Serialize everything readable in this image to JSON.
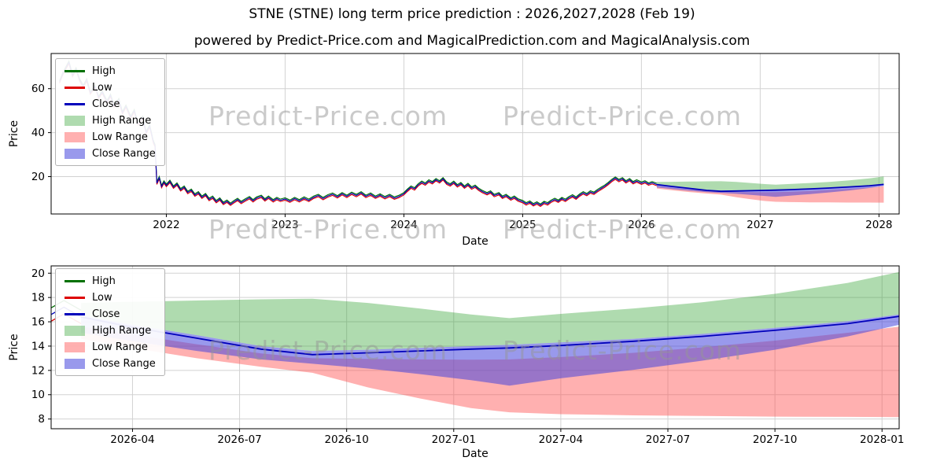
{
  "title": "STNE (STNE) long term price prediction : 2026,2027,2028 (Feb 19)",
  "subtitle": "powered by Predict-Price.com and MagicalPrediction.com and MagicalAnalysis.com",
  "watermark": {
    "text": "Predict-Price.com",
    "color": "rgba(150,150,150,0.5)"
  },
  "axis_labels": {
    "x": "Date",
    "y": "Price"
  },
  "colors": {
    "high": "#007000",
    "low": "#dd0000",
    "close": "#0000bb",
    "high_range": "rgba(44,160,44,0.38)",
    "low_range": "rgba(255,80,80,0.45)",
    "close_range": "rgba(70,70,220,0.55)",
    "grid": "#d2d2d2",
    "axis": "#000000"
  },
  "legend": {
    "items": [
      {
        "label": "High",
        "type": "line",
        "color": "#007000"
      },
      {
        "label": "Low",
        "type": "line",
        "color": "#dd0000"
      },
      {
        "label": "Close",
        "type": "line",
        "color": "#0000bb"
      },
      {
        "label": "High Range",
        "type": "band",
        "color": "rgba(44,160,44,0.38)"
      },
      {
        "label": "Low Range",
        "type": "band",
        "color": "rgba(255,80,80,0.45)"
      },
      {
        "label": "Close Range",
        "type": "band",
        "color": "rgba(70,70,220,0.55)"
      }
    ]
  },
  "chart_data": [
    {
      "type": "line",
      "name": "history-and-forecast",
      "xlabel": "Date",
      "ylabel": "Price",
      "xlim": [
        2021.03,
        2028.17
      ],
      "ylim": [
        3,
        76
      ],
      "grid": true,
      "legend_position": "upper-left",
      "xticks": [
        {
          "v": 2022,
          "label": "2022"
        },
        {
          "v": 2023,
          "label": "2023"
        },
        {
          "v": 2024,
          "label": "2024"
        },
        {
          "v": 2025,
          "label": "2025"
        },
        {
          "v": 2026,
          "label": "2026"
        },
        {
          "v": 2027,
          "label": "2027"
        },
        {
          "v": 2028,
          "label": "2028"
        }
      ],
      "yticks": [
        {
          "v": 20,
          "label": "20"
        },
        {
          "v": 40,
          "label": "40"
        },
        {
          "v": 60,
          "label": "60"
        }
      ],
      "series": {
        "history": {
          "high_offset": 0.55,
          "low_offset": -0.55,
          "close_points": [
            [
              2021.1,
              63
            ],
            [
              2021.13,
              67
            ],
            [
              2021.16,
              70
            ],
            [
              2021.18,
              72
            ],
            [
              2021.21,
              66
            ],
            [
              2021.24,
              69
            ],
            [
              2021.27,
              64
            ],
            [
              2021.3,
              61
            ],
            [
              2021.33,
              64
            ],
            [
              2021.36,
              58
            ],
            [
              2021.4,
              61
            ],
            [
              2021.43,
              56
            ],
            [
              2021.46,
              58.5
            ],
            [
              2021.5,
              54
            ],
            [
              2021.53,
              57
            ],
            [
              2021.56,
              52
            ],
            [
              2021.6,
              55
            ],
            [
              2021.63,
              49
            ],
            [
              2021.66,
              52
            ],
            [
              2021.7,
              47
            ],
            [
              2021.73,
              50
            ],
            [
              2021.76,
              44
            ],
            [
              2021.8,
              47
            ],
            [
              2021.83,
              40
            ],
            [
              2021.86,
              43
            ],
            [
              2021.89,
              36
            ],
            [
              2021.905,
              34
            ],
            [
              2021.92,
              17
            ],
            [
              2021.94,
              19.5
            ],
            [
              2021.96,
              15.5
            ],
            [
              2021.98,
              17.5
            ],
            [
              2022.0,
              16.0
            ],
            [
              2022.03,
              17.8
            ],
            [
              2022.06,
              15.2
            ],
            [
              2022.09,
              16.6
            ],
            [
              2022.12,
              14.0
            ],
            [
              2022.15,
              15.2
            ],
            [
              2022.18,
              12.8
            ],
            [
              2022.21,
              13.8
            ],
            [
              2022.24,
              11.6
            ],
            [
              2022.27,
              12.6
            ],
            [
              2022.3,
              10.6
            ],
            [
              2022.33,
              11.8
            ],
            [
              2022.36,
              9.6
            ],
            [
              2022.39,
              10.6
            ],
            [
              2022.42,
              8.6
            ],
            [
              2022.45,
              9.8
            ],
            [
              2022.48,
              7.8
            ],
            [
              2022.51,
              8.8
            ],
            [
              2022.54,
              7.4
            ],
            [
              2022.57,
              8.6
            ],
            [
              2022.6,
              9.6
            ],
            [
              2022.63,
              8.2
            ],
            [
              2022.66,
              9.2
            ],
            [
              2022.7,
              10.4
            ],
            [
              2022.73,
              9.0
            ],
            [
              2022.76,
              10.2
            ],
            [
              2022.8,
              11.0
            ],
            [
              2022.83,
              9.4
            ],
            [
              2022.86,
              10.6
            ],
            [
              2022.9,
              9.0
            ],
            [
              2022.93,
              10.0
            ],
            [
              2022.96,
              9.2
            ],
            [
              2023.0,
              9.8
            ],
            [
              2023.04,
              8.8
            ],
            [
              2023.08,
              10.0
            ],
            [
              2023.12,
              9.0
            ],
            [
              2023.16,
              10.2
            ],
            [
              2023.2,
              9.2
            ],
            [
              2023.24,
              10.6
            ],
            [
              2023.28,
              11.4
            ],
            [
              2023.32,
              10.0
            ],
            [
              2023.36,
              11.2
            ],
            [
              2023.4,
              12.0
            ],
            [
              2023.44,
              10.8
            ],
            [
              2023.48,
              12.2
            ],
            [
              2023.52,
              11.0
            ],
            [
              2023.56,
              12.4
            ],
            [
              2023.6,
              11.4
            ],
            [
              2023.64,
              12.6
            ],
            [
              2023.68,
              11.0
            ],
            [
              2023.72,
              12.0
            ],
            [
              2023.76,
              10.6
            ],
            [
              2023.8,
              11.6
            ],
            [
              2023.84,
              10.4
            ],
            [
              2023.88,
              11.4
            ],
            [
              2023.92,
              10.2
            ],
            [
              2023.96,
              11.0
            ],
            [
              2024.0,
              12.2
            ],
            [
              2024.03,
              13.8
            ],
            [
              2024.06,
              15.2
            ],
            [
              2024.09,
              14.4
            ],
            [
              2024.12,
              16.2
            ],
            [
              2024.15,
              17.4
            ],
            [
              2024.18,
              16.6
            ],
            [
              2024.21,
              18.0
            ],
            [
              2024.24,
              17.2
            ],
            [
              2024.27,
              18.6
            ],
            [
              2024.3,
              17.6
            ],
            [
              2024.33,
              19.0
            ],
            [
              2024.36,
              17.0
            ],
            [
              2024.39,
              16.2
            ],
            [
              2024.42,
              17.4
            ],
            [
              2024.45,
              15.8
            ],
            [
              2024.48,
              16.8
            ],
            [
              2024.51,
              15.2
            ],
            [
              2024.54,
              16.4
            ],
            [
              2024.57,
              14.8
            ],
            [
              2024.6,
              15.6
            ],
            [
              2024.63,
              14.2
            ],
            [
              2024.66,
              13.2
            ],
            [
              2024.7,
              12.2
            ],
            [
              2024.73,
              13.0
            ],
            [
              2024.76,
              11.4
            ],
            [
              2024.8,
              12.2
            ],
            [
              2024.83,
              10.6
            ],
            [
              2024.86,
              11.4
            ],
            [
              2024.9,
              9.8
            ],
            [
              2024.93,
              10.6
            ],
            [
              2024.96,
              9.4
            ],
            [
              2025.0,
              8.6
            ],
            [
              2025.03,
              7.6
            ],
            [
              2025.06,
              8.4
            ],
            [
              2025.09,
              7.2
            ],
            [
              2025.12,
              8.0
            ],
            [
              2025.15,
              7.0
            ],
            [
              2025.18,
              8.2
            ],
            [
              2025.21,
              7.6
            ],
            [
              2025.24,
              8.8
            ],
            [
              2025.27,
              9.6
            ],
            [
              2025.3,
              8.8
            ],
            [
              2025.33,
              10.0
            ],
            [
              2025.36,
              9.2
            ],
            [
              2025.39,
              10.4
            ],
            [
              2025.42,
              11.2
            ],
            [
              2025.45,
              10.2
            ],
            [
              2025.48,
              11.6
            ],
            [
              2025.51,
              12.6
            ],
            [
              2025.54,
              11.8
            ],
            [
              2025.57,
              13.0
            ],
            [
              2025.6,
              12.4
            ],
            [
              2025.63,
              13.6
            ],
            [
              2025.66,
              14.6
            ],
            [
              2025.69,
              15.6
            ],
            [
              2025.72,
              16.8
            ],
            [
              2025.75,
              18.2
            ],
            [
              2025.78,
              19.3
            ],
            [
              2025.81,
              18.2
            ],
            [
              2025.84,
              19.0
            ],
            [
              2025.87,
              17.6
            ],
            [
              2025.9,
              18.6
            ],
            [
              2025.93,
              17.2
            ],
            [
              2025.96,
              18.0
            ],
            [
              2026.0,
              17.0
            ],
            [
              2026.03,
              17.6
            ],
            [
              2026.06,
              16.6
            ],
            [
              2026.09,
              17.2
            ],
            [
              2026.13,
              16.4
            ]
          ]
        },
        "forecast": {
          "t": [
            2026.13,
            2026.25,
            2026.4,
            2026.55,
            2026.67,
            2026.8,
            2026.92,
            2027.04,
            2027.13,
            2027.25,
            2027.42,
            2027.58,
            2027.75,
            2027.92,
            2028.04
          ],
          "close": [
            16.4,
            15.55,
            14.65,
            13.75,
            13.3,
            13.45,
            13.6,
            13.75,
            13.85,
            14.05,
            14.4,
            14.8,
            15.3,
            15.85,
            16.45
          ],
          "close_upper": [
            16.55,
            15.75,
            14.9,
            14.0,
            13.6,
            13.7,
            13.85,
            14.0,
            14.1,
            14.3,
            14.6,
            15.0,
            15.5,
            16.05,
            16.6
          ],
          "close_lower": [
            15.1,
            14.4,
            13.6,
            12.9,
            12.55,
            12.15,
            11.7,
            11.2,
            10.75,
            11.35,
            12.05,
            12.8,
            13.7,
            14.8,
            15.75
          ],
          "high_upper": [
            17.55,
            17.65,
            17.75,
            17.85,
            17.9,
            17.55,
            17.1,
            16.6,
            16.3,
            16.65,
            17.1,
            17.6,
            18.3,
            19.2,
            20.1
          ],
          "low_upper": [
            15.6,
            14.95,
            14.15,
            13.4,
            13.0,
            12.95,
            12.9,
            12.88,
            12.9,
            13.1,
            13.45,
            13.9,
            14.45,
            15.1,
            15.6
          ],
          "low_lower": [
            14.6,
            13.85,
            13.0,
            12.3,
            11.8,
            10.6,
            9.7,
            8.9,
            8.55,
            8.4,
            8.3,
            8.25,
            8.2,
            8.18,
            8.15
          ]
        }
      }
    },
    {
      "type": "line",
      "name": "forecast-detail",
      "xlabel": "Date",
      "ylabel": "Price",
      "xlim": [
        2026.06,
        2028.04
      ],
      "ylim": [
        7.2,
        20.6
      ],
      "grid": true,
      "legend_position": "upper-left",
      "series_from": 0,
      "xticks": [
        {
          "v": 2026.25,
          "label": "2026-04"
        },
        {
          "v": 2026.5,
          "label": "2026-07"
        },
        {
          "v": 2026.75,
          "label": "2026-10"
        },
        {
          "v": 2027.0,
          "label": "2027-01"
        },
        {
          "v": 2027.25,
          "label": "2027-04"
        },
        {
          "v": 2027.5,
          "label": "2027-07"
        },
        {
          "v": 2027.75,
          "label": "2027-10"
        },
        {
          "v": 2028.0,
          "label": "2028-01"
        }
      ],
      "yticks": [
        {
          "v": 8,
          "label": "8"
        },
        {
          "v": 10,
          "label": "10"
        },
        {
          "v": 12,
          "label": "12"
        },
        {
          "v": 14,
          "label": "14"
        },
        {
          "v": 16,
          "label": "16"
        },
        {
          "v": 18,
          "label": "18"
        },
        {
          "v": 20,
          "label": "20"
        }
      ]
    }
  ]
}
